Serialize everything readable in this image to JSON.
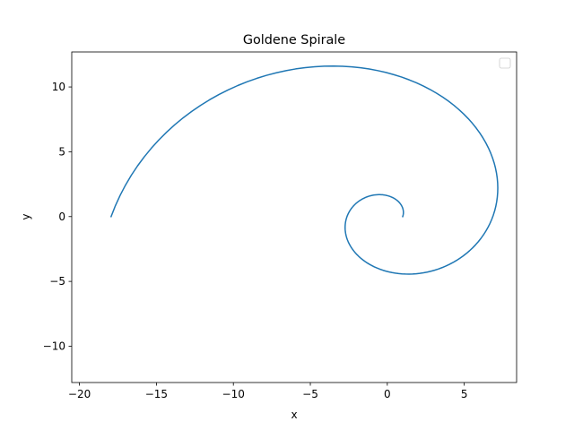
{
  "chart_data": {
    "type": "line",
    "title": "Goldene Spirale",
    "xlabel": "x",
    "ylabel": "y",
    "xlim": [
      -20.5,
      8.4
    ],
    "ylim": [
      -12.8,
      12.7
    ],
    "xticks": [
      -20,
      -15,
      -10,
      -5,
      0,
      5
    ],
    "yticks": [
      -10,
      -5,
      0,
      5,
      10
    ],
    "xtick_labels": [
      "−20",
      "−15",
      "−10",
      "−5",
      "0",
      "5"
    ],
    "ytick_labels": [
      "−10",
      "−5",
      "0",
      "5",
      "10"
    ],
    "grid": false,
    "legend": {
      "placement": "top-right",
      "entries": []
    },
    "line_color": "#1f77b4",
    "spiral": {
      "a": 1,
      "growth_per_radian": 0.30635,
      "theta_start": 0,
      "theta_end": 9.42478,
      "points": 200
    }
  }
}
